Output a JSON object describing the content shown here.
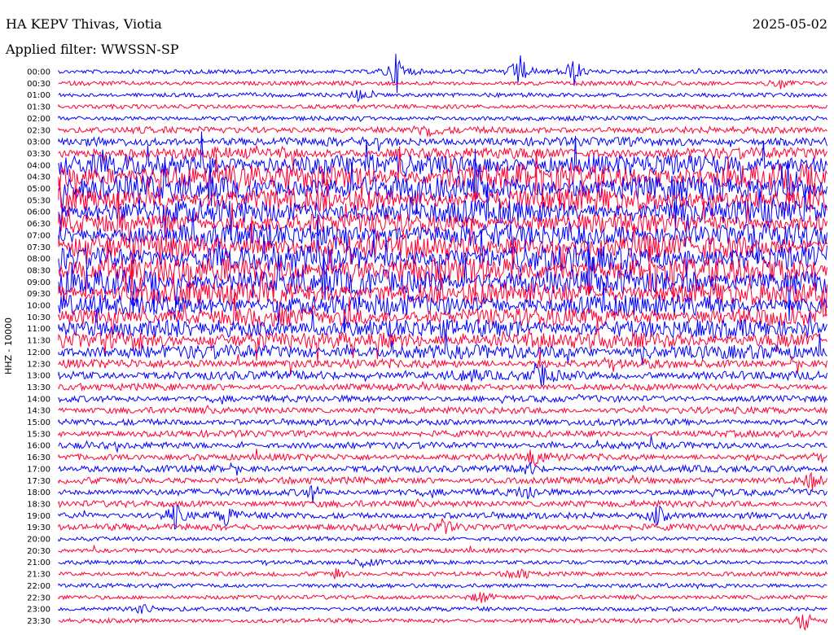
{
  "header": {
    "station": "HA KEPV Thivas, Viotia",
    "date": "2025-05-02",
    "filter": "Applied filter: WWSSN-SP"
  },
  "chart_data": {
    "type": "line",
    "title": "HA KEPV Thivas, Viotia",
    "ylabel": "HHZ - 10000",
    "xlabel": "",
    "colors": [
      "#0000ff",
      "#ff0033"
    ],
    "row_labels": [
      "00:00",
      "00:30",
      "01:00",
      "01:30",
      "02:00",
      "02:30",
      "03:00",
      "03:30",
      "04:00",
      "04:30",
      "05:00",
      "05:30",
      "06:00",
      "06:30",
      "07:00",
      "07:30",
      "08:00",
      "08:30",
      "09:00",
      "09:30",
      "10:00",
      "10:30",
      "11:00",
      "11:30",
      "12:00",
      "12:30",
      "13:00",
      "13:30",
      "14:00",
      "14:30",
      "15:00",
      "15:30",
      "16:00",
      "16:30",
      "17:00",
      "17:30",
      "18:00",
      "18:30",
      "19:00",
      "19:30",
      "20:00",
      "20:30",
      "21:00",
      "21:30",
      "22:00",
      "22:30",
      "23:00",
      "23:30"
    ],
    "noise_level": [
      1,
      1,
      1,
      1,
      1,
      2,
      3,
      4,
      8,
      10,
      10,
      9,
      9,
      8,
      9,
      9,
      10,
      10,
      10,
      9,
      8,
      7,
      7,
      6,
      5,
      3,
      3,
      2,
      2,
      2,
      2,
      2,
      2,
      2,
      2,
      2,
      2,
      2,
      2,
      2,
      1,
      1,
      1,
      1,
      1,
      1,
      1,
      1
    ],
    "events": [
      {
        "row": 0,
        "x": 0.44,
        "amp": 24
      },
      {
        "row": 0,
        "x": 0.6,
        "amp": 20
      },
      {
        "row": 0,
        "x": 0.67,
        "amp": 18
      },
      {
        "row": 1,
        "x": 0.94,
        "amp": 8
      },
      {
        "row": 2,
        "x": 0.39,
        "amp": 8
      },
      {
        "row": 5,
        "x": 0.48,
        "amp": 8
      },
      {
        "row": 23,
        "x": 0.1,
        "amp": 10
      },
      {
        "row": 26,
        "x": 0.53,
        "amp": 10
      },
      {
        "row": 26,
        "x": 0.63,
        "amp": 12
      },
      {
        "row": 33,
        "x": 0.62,
        "amp": 12
      },
      {
        "row": 34,
        "x": 0.61,
        "amp": 8
      },
      {
        "row": 35,
        "x": 0.98,
        "amp": 10
      },
      {
        "row": 36,
        "x": 0.61,
        "amp": 10
      },
      {
        "row": 36,
        "x": 0.33,
        "amp": 10
      },
      {
        "row": 38,
        "x": 0.15,
        "amp": 18
      },
      {
        "row": 38,
        "x": 0.22,
        "amp": 12
      },
      {
        "row": 38,
        "x": 0.78,
        "amp": 12
      },
      {
        "row": 39,
        "x": 0.5,
        "amp": 8
      },
      {
        "row": 42,
        "x": 0.4,
        "amp": 6
      },
      {
        "row": 43,
        "x": 0.36,
        "amp": 6
      },
      {
        "row": 43,
        "x": 0.6,
        "amp": 8
      },
      {
        "row": 45,
        "x": 0.55,
        "amp": 8
      },
      {
        "row": 46,
        "x": 0.11,
        "amp": 6
      },
      {
        "row": 47,
        "x": 0.97,
        "amp": 14
      }
    ]
  }
}
